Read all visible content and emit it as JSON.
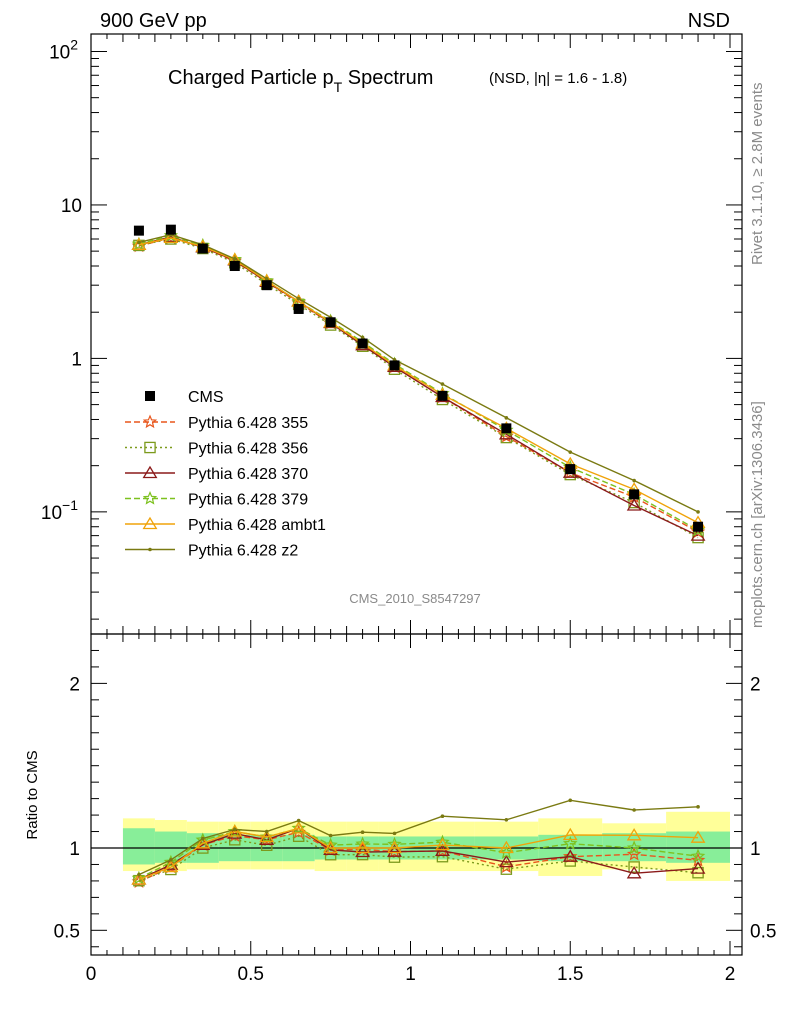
{
  "header": {
    "left": "900 GeV pp",
    "right": "NSD"
  },
  "side_labels": {
    "top": "Rivet 3.1.10, ≥ 2.8M events",
    "bottom": "mcplots.cern.ch [arXiv:1306.3436]"
  },
  "chart_data": {
    "type": "line",
    "title_main": "Charged Particle p",
    "title_sub": "T",
    "title_main2": " Spectrum",
    "title_small": "(NSD, |η| = 1.6 - 1.8)",
    "watermark": "CMS_2010_S8547297",
    "x": [
      0.15,
      0.25,
      0.35,
      0.45,
      0.55,
      0.65,
      0.75,
      0.85,
      0.95,
      1.1,
      1.3,
      1.5,
      1.7,
      1.9
    ],
    "xlim": [
      0,
      2.05
    ],
    "xticks": [
      "0",
      "0.5",
      "1",
      "1.5",
      "2"
    ],
    "log_y": true,
    "ylim": [
      0.016,
      130
    ],
    "yticks": [
      {
        "base": "10",
        "exp": "2",
        "v": 100
      },
      {
        "base": "10",
        "exp": "",
        "v": 10
      },
      {
        "base": "1",
        "exp": "",
        "v": 1
      },
      {
        "base": "10",
        "exp": "−1",
        "v": 0.1
      }
    ],
    "data": {
      "name": "CMS",
      "values": [
        6.8,
        6.9,
        5.2,
        4.0,
        3.0,
        2.1,
        1.72,
        1.25,
        0.9,
        0.57,
        0.35,
        0.19,
        0.13,
        0.08
      ],
      "x_err": [
        0.05,
        0.05,
        0.05,
        0.05,
        0.05,
        0.05,
        0.05,
        0.05,
        0.05,
        0.1,
        0.1,
        0.1,
        0.1,
        0.1
      ]
    },
    "series": [
      {
        "name": "Pythia 6.428 355",
        "color": "#e8561c",
        "dash": "6,3",
        "marker": "star",
        "values": [
          5.4,
          6.1,
          5.3,
          4.3,
          3.15,
          2.3,
          1.7,
          1.24,
          0.88,
          0.56,
          0.31,
          0.18,
          0.125,
          0.074
        ]
      },
      {
        "name": "Pythia 6.428 356",
        "color": "#7c9a1c",
        "dash": "2,3",
        "marker": "square",
        "values": [
          5.45,
          6.0,
          5.2,
          4.2,
          3.05,
          2.25,
          1.65,
          1.2,
          0.85,
          0.54,
          0.305,
          0.175,
          0.115,
          0.068
        ]
      },
      {
        "name": "Pythia 6.428 370",
        "color": "#8b1a1a",
        "dash": "",
        "marker": "triangle",
        "values": [
          5.5,
          6.2,
          5.3,
          4.35,
          3.15,
          2.35,
          1.7,
          1.22,
          0.88,
          0.56,
          0.32,
          0.18,
          0.11,
          0.07
        ]
      },
      {
        "name": "Pythia 6.428 379",
        "color": "#7dc11f",
        "dash": "6,3",
        "marker": "star",
        "values": [
          5.55,
          6.3,
          5.45,
          4.4,
          3.2,
          2.35,
          1.75,
          1.28,
          0.92,
          0.59,
          0.34,
          0.195,
          0.13,
          0.076
        ]
      },
      {
        "name": "Pythia 6.428 ambt1",
        "color": "#f0a30a",
        "dash": "",
        "marker": "triangle",
        "values": [
          5.5,
          6.1,
          5.35,
          4.4,
          3.2,
          2.35,
          1.72,
          1.25,
          0.9,
          0.58,
          0.35,
          0.205,
          0.14,
          0.085
        ]
      },
      {
        "name": "Pythia 6.428 z2",
        "color": "#7a7a12",
        "dash": "",
        "marker": "dot",
        "values": [
          5.7,
          6.4,
          5.5,
          4.45,
          3.3,
          2.45,
          1.85,
          1.37,
          0.98,
          0.68,
          0.41,
          0.245,
          0.16,
          0.1
        ]
      }
    ],
    "ratio": {
      "ylabel": "Ratio to CMS",
      "ylim": [
        0.35,
        2.3
      ],
      "yticks": [
        "0.5",
        "1",
        "2"
      ],
      "yticks_v": [
        0.5,
        1,
        2
      ],
      "band_inner": [
        [
          0.1,
          0.2,
          0.9,
          1.12
        ],
        [
          0.2,
          0.3,
          0.91,
          1.1
        ],
        [
          0.3,
          0.4,
          0.91,
          1.09
        ],
        [
          0.4,
          0.5,
          0.92,
          1.08
        ],
        [
          0.5,
          0.6,
          0.92,
          1.08
        ],
        [
          0.6,
          0.7,
          0.92,
          1.08
        ],
        [
          0.7,
          0.8,
          0.93,
          1.07
        ],
        [
          0.8,
          0.9,
          0.93,
          1.07
        ],
        [
          0.9,
          1.0,
          0.93,
          1.07
        ],
        [
          1.0,
          1.2,
          0.93,
          1.07
        ],
        [
          1.2,
          1.4,
          0.93,
          1.07
        ],
        [
          1.4,
          1.6,
          0.92,
          1.08
        ],
        [
          1.6,
          1.8,
          0.92,
          1.09
        ],
        [
          1.8,
          2.0,
          0.91,
          1.1
        ]
      ],
      "band_outer": [
        [
          0.1,
          0.2,
          0.86,
          1.18
        ],
        [
          0.2,
          0.3,
          0.86,
          1.17
        ],
        [
          0.3,
          0.4,
          0.87,
          1.16
        ],
        [
          0.4,
          0.5,
          0.87,
          1.16
        ],
        [
          0.5,
          0.6,
          0.87,
          1.16
        ],
        [
          0.6,
          0.7,
          0.87,
          1.16
        ],
        [
          0.7,
          0.8,
          0.86,
          1.16
        ],
        [
          0.8,
          0.9,
          0.86,
          1.16
        ],
        [
          0.9,
          1.0,
          0.86,
          1.16
        ],
        [
          1.0,
          1.2,
          0.86,
          1.16
        ],
        [
          1.2,
          1.4,
          0.86,
          1.16
        ],
        [
          1.4,
          1.6,
          0.83,
          1.18
        ],
        [
          1.6,
          1.8,
          0.87,
          1.15
        ],
        [
          1.8,
          2.0,
          0.8,
          1.22
        ]
      ]
    }
  }
}
